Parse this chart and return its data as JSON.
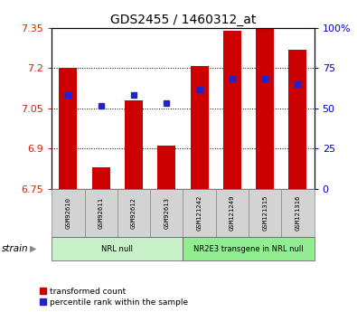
{
  "title": "GDS2455 / 1460312_at",
  "samples": [
    "GSM92610",
    "GSM92611",
    "GSM92612",
    "GSM92613",
    "GSM121242",
    "GSM121249",
    "GSM121315",
    "GSM121316"
  ],
  "groups": [
    {
      "label": "NRL null",
      "color": "#c8f0c8",
      "samples": [
        0,
        1,
        2,
        3
      ]
    },
    {
      "label": "NR2E3 transgene in NRL null",
      "color": "#90ee90",
      "samples": [
        4,
        5,
        6,
        7
      ]
    }
  ],
  "red_values": [
    7.2,
    6.83,
    7.08,
    6.91,
    7.21,
    7.34,
    7.35,
    7.27
  ],
  "blue_values": [
    7.1,
    7.06,
    7.1,
    7.07,
    7.12,
    7.16,
    7.16,
    7.14
  ],
  "ylim": [
    6.75,
    7.35
  ],
  "yticks_left": [
    6.75,
    6.9,
    7.05,
    7.2,
    7.35
  ],
  "yticks_right_vals": [
    0,
    25,
    50,
    75,
    100
  ],
  "bar_bottom": 6.75,
  "bar_width": 0.55,
  "red_color": "#cc0000",
  "blue_color": "#2222cc",
  "bg_color": "#ffffff",
  "tick_label_color_left": "#cc2200",
  "tick_label_color_right": "#0000cc",
  "legend_red_label": "transformed count",
  "legend_blue_label": "percentile rank within the sample",
  "strain_label": "strain"
}
